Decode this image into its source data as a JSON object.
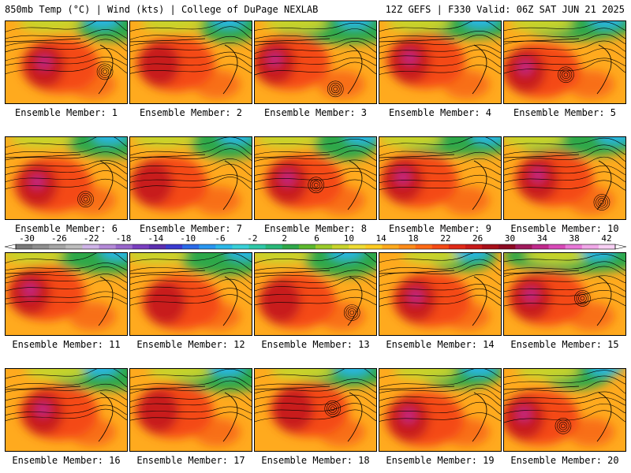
{
  "header": {
    "title_left": "850mb Temp (°C) | Wind (kts) | College of DuPage NEXLAB",
    "title_right": "12Z GEFS | F330 Valid: 06Z SAT JUN 21 2025"
  },
  "members": [
    {
      "label": "Ensemble Member: 1"
    },
    {
      "label": "Ensemble Member: 2"
    },
    {
      "label": "Ensemble Member: 3"
    },
    {
      "label": "Ensemble Member: 4"
    },
    {
      "label": "Ensemble Member: 5"
    },
    {
      "label": "Ensemble Member: 6"
    },
    {
      "label": "Ensemble Member: 7"
    },
    {
      "label": "Ensemble Member: 8"
    },
    {
      "label": "Ensemble Member: 9"
    },
    {
      "label": "Ensemble Member: 10"
    },
    {
      "label": "Ensemble Member: 11"
    },
    {
      "label": "Ensemble Member: 12"
    },
    {
      "label": "Ensemble Member: 13"
    },
    {
      "label": "Ensemble Member: 14"
    },
    {
      "label": "Ensemble Member: 15"
    },
    {
      "label": "Ensemble Member: 16"
    },
    {
      "label": "Ensemble Member: 17"
    },
    {
      "label": "Ensemble Member: 18"
    },
    {
      "label": "Ensemble Member: 19"
    },
    {
      "label": "Ensemble Member: 20"
    }
  ],
  "colorbar": {
    "ticks": [
      "-30",
      "-26",
      "-22",
      "-18",
      "-14",
      "-10",
      "-6",
      "-2",
      "2",
      "6",
      "10",
      "14",
      "18",
      "22",
      "26",
      "30",
      "34",
      "38",
      "42"
    ],
    "colors": [
      "#7a7a7a",
      "#8f8f8f",
      "#a6a6a6",
      "#bdbdbd",
      "#cfb4e8",
      "#b48ad8",
      "#9966cc",
      "#7a3fc0",
      "#5c2fb0",
      "#3b3bd0",
      "#2a6ae8",
      "#2996f0",
      "#2bb8e8",
      "#39d0d8",
      "#2fc8a8",
      "#28b878",
      "#2fa84a",
      "#5cb82e",
      "#9acb2a",
      "#c8d42c",
      "#eedc34",
      "#ffcc22",
      "#ffaa1e",
      "#ff8c1a",
      "#ff6a16",
      "#f44a16",
      "#e02a18",
      "#c81a1a",
      "#a8101a",
      "#8c0a22",
      "#a01a5c",
      "#c02a8c",
      "#d84ab8",
      "#e878d8",
      "#f0a8e8",
      "#f8d0f4"
    ]
  },
  "palette": {
    "cold": "#2bb8e8",
    "cool": "#2fa84a",
    "mild": "#c8d42c",
    "warm": "#ffaa1e",
    "hot": "#f44a16",
    "very_hot": "#c81a1a",
    "extreme": "#c02a8c",
    "contour": "#000000"
  }
}
